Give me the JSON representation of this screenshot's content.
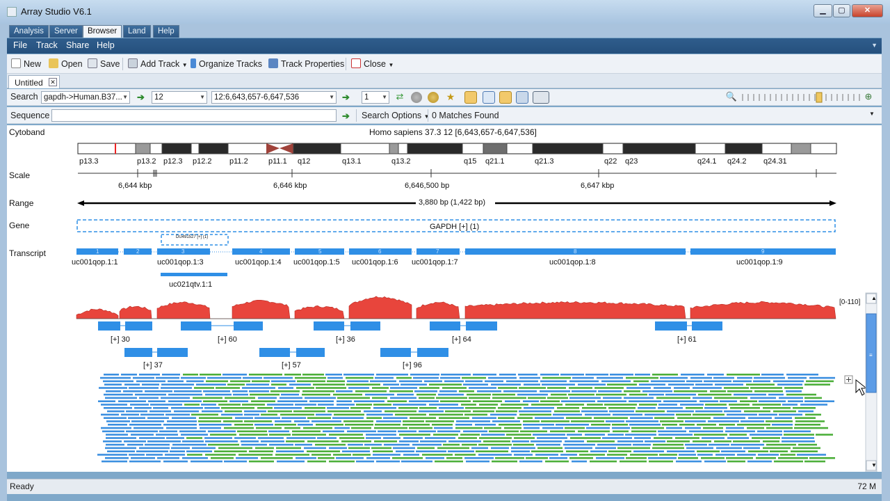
{
  "window": {
    "title": "Array Studio V6.1",
    "min": "▁",
    "max": "▢",
    "close": "✕"
  },
  "app_tabs": [
    "Analysis",
    "Server",
    "Browser",
    "Land",
    "Help"
  ],
  "menu": [
    "File",
    "Track",
    "Share",
    "Help"
  ],
  "toolbar": {
    "new": "New",
    "open": "Open",
    "save": "Save",
    "add_track": "Add Track",
    "organize": "Organize Tracks",
    "properties": "Track Properties",
    "close": "Close"
  },
  "doc_tab": "Untitled",
  "search": {
    "label": "Search",
    "genome": "gapdh->Human.B37...",
    "chromosome": "12",
    "region": "12:6,643,657-6,647,536",
    "count": "1"
  },
  "sequence": {
    "label": "Sequence",
    "value": "",
    "options": "Search Options",
    "matches": "0 Matches Found"
  },
  "tracks": {
    "cytoband": "Cytoband",
    "scale": "Scale",
    "range": "Range",
    "gene": "Gene",
    "transcript": "Transcript"
  },
  "cytoband_title": "Homo sapiens 37.3 12 [6,643,657-6,647,536]",
  "cytoband_labels": [
    "p13.3",
    "p13.2",
    "p12.3",
    "p12.2",
    "p11.2",
    "p11.1",
    "q12",
    "q13.1",
    "q13.2",
    "q15",
    "q21.1",
    "q21.3",
    "q22",
    "q23",
    "q24.1",
    "q24.2",
    "q24.31"
  ],
  "scale_labels": [
    "6,644 kbp",
    "6,646 kbp",
    "6,646,500 bp",
    "6,647 kbp"
  ],
  "range_label": "3,880 bp (1,422 bp)",
  "gene_label": "GAPDH [+] (1)",
  "gene_small_label": "DU491527 [+] (1)",
  "transcripts": [
    "uc001qop.1:1",
    "uc001qop.1:3",
    "uc001qop.1:4",
    "uc001qop.1:5",
    "uc001qop.1:6",
    "uc001qop.1:7",
    "uc001qop.1:8",
    "uc001qop.1:9",
    "uc021qtv.1:1"
  ],
  "exon_numbers": [
    "1",
    "2",
    "3",
    "4",
    "5",
    "6",
    "7",
    "8",
    "9"
  ],
  "coverage_range": "[0-110]",
  "junction_labels": [
    "[+] 30",
    "[+] 60",
    "[+] 36",
    "[+] 64",
    "[+] 61",
    "[+] 37",
    "[+] 57",
    "[+] 96"
  ],
  "status": {
    "text": "Ready",
    "memory": "72 M"
  },
  "colors": {
    "exon": "#2f8fe6",
    "coverage": "#e8453c",
    "read_fwd": "#3b8fe0",
    "read_rev": "#4caf3a"
  }
}
